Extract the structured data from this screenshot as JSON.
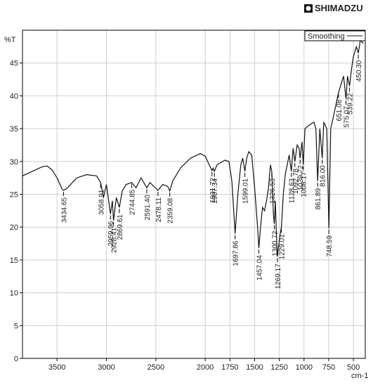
{
  "logo": "SHIMADZU",
  "chart_data": {
    "type": "line",
    "ylabel": "%T",
    "xlabel": "cm-1",
    "xlim": [
      3850,
      380
    ],
    "xticks": [
      3500,
      3000,
      2500,
      2000,
      1750,
      1500,
      1250,
      1000,
      750,
      500
    ],
    "ylim": [
      0,
      50
    ],
    "yticks": [
      0,
      5,
      10,
      15,
      20,
      25,
      30,
      35,
      40,
      45
    ],
    "grid": true,
    "legend": "upper right",
    "x": [
      3850,
      3750,
      3650,
      3600,
      3550,
      3500,
      3450,
      3434.65,
      3400,
      3300,
      3200,
      3100,
      3058.91,
      3030,
      3000,
      2959.96,
      2940,
      2928.41,
      2900,
      2869.61,
      2840,
      2800,
      2744.85,
      2700,
      2650,
      2591.4,
      2560,
      2520,
      2478.11,
      2430,
      2380,
      2359.08,
      2330,
      2250,
      2150,
      2050,
      2000,
      1960,
      1931.72,
      1920,
      1907.34,
      1880,
      1800,
      1760,
      1730,
      1697.86,
      1670,
      1640,
      1620,
      1599.01,
      1580,
      1560,
      1530,
      1500,
      1470,
      1457.04,
      1440,
      1420,
      1400,
      1380,
      1360,
      1340,
      1326.53,
      1310,
      1300.72,
      1290,
      1280,
      1269.17,
      1250,
      1229.01,
      1210,
      1190,
      1150,
      1128.63,
      1110,
      1092.78,
      1070,
      1050,
      1039.72,
      1020,
      1008.17,
      990,
      950,
      900,
      880,
      861.89,
      840,
      816.0,
      800,
      770,
      748.59,
      730,
      700,
      651.08,
      620,
      600,
      575.07,
      560,
      539.22,
      520,
      500,
      470,
      450.3,
      430,
      400
    ],
    "series": [
      {
        "name": "Smoothing",
        "color": "#111111",
        "values": [
          27.8,
          28.5,
          29.2,
          29.3,
          28.7,
          27.5,
          25.8,
          25.6,
          25.9,
          27.5,
          28.0,
          27.8,
          26.8,
          24.5,
          26.5,
          22.0,
          24.0,
          21.0,
          24.5,
          23.0,
          25.5,
          26.5,
          26.8,
          26.0,
          27.5,
          26.0,
          26.8,
          26.2,
          25.6,
          26.5,
          26.2,
          25.5,
          27.0,
          29.0,
          30.5,
          31.2,
          30.8,
          29.5,
          28.6,
          29.0,
          28.5,
          29.5,
          30.2,
          30.0,
          27.0,
          19.0,
          25.0,
          29.5,
          30.5,
          28.5,
          30.5,
          31.5,
          31.0,
          26.0,
          20.0,
          16.8,
          20.0,
          23.0,
          22.5,
          24.0,
          26.0,
          29.5,
          28.5,
          22.0,
          20.5,
          24.0,
          19.0,
          15.5,
          18.0,
          20.0,
          25.0,
          28.0,
          31.0,
          28.5,
          32.0,
          30.0,
          32.5,
          32.0,
          30.5,
          33.0,
          29.5,
          35.0,
          35.5,
          36.0,
          35.0,
          27.0,
          35.0,
          30.5,
          36.0,
          35.0,
          19.8,
          35.0,
          37.0,
          40.5,
          42.0,
          43.0,
          39.5,
          43.0,
          41.5,
          44.0,
          46.0,
          47.5,
          46.5,
          48.5,
          48.0
        ]
      }
    ],
    "annotations": [
      {
        "value": 3434.65,
        "label": "3434.65"
      },
      {
        "value": 3058.91,
        "label": "3058.91"
      },
      {
        "value": 2959.96,
        "label": "2959.96"
      },
      {
        "value": 2928.41,
        "label": "2928.41"
      },
      {
        "value": 2869.61,
        "label": "2869.61"
      },
      {
        "value": 2744.85,
        "label": "2744.85"
      },
      {
        "value": 2591.4,
        "label": "2591.40"
      },
      {
        "value": 2478.11,
        "label": "2478.11"
      },
      {
        "value": 2359.08,
        "label": "2359.08"
      },
      {
        "value": 1931.72,
        "label": "1931.72"
      },
      {
        "value": 1907.34,
        "label": "1907.34"
      },
      {
        "value": 1697.86,
        "label": "1697.86"
      },
      {
        "value": 1599.01,
        "label": "1599.01"
      },
      {
        "value": 1457.04,
        "label": "1457.04"
      },
      {
        "value": 1326.53,
        "label": "1326.53"
      },
      {
        "value": 1300.72,
        "label": "1300.72"
      },
      {
        "value": 1269.17,
        "label": "1269.17"
      },
      {
        "value": 1229.01,
        "label": "1229.01"
      },
      {
        "value": 1128.63,
        "label": "1128.63"
      },
      {
        "value": 1092.78,
        "label": "1092.78"
      },
      {
        "value": 1039.72,
        "label": "1039.72"
      },
      {
        "value": 1008.17,
        "label": "1008.17"
      },
      {
        "value": 861.89,
        "label": "861.89"
      },
      {
        "value": 816.0,
        "label": "816.00"
      },
      {
        "value": 748.59,
        "label": "748.59"
      },
      {
        "value": 651.08,
        "label": "651.08"
      },
      {
        "value": 575.07,
        "label": "575.07"
      },
      {
        "value": 539.22,
        "label": "539.22"
      },
      {
        "value": 450.3,
        "label": "450.30"
      }
    ]
  }
}
